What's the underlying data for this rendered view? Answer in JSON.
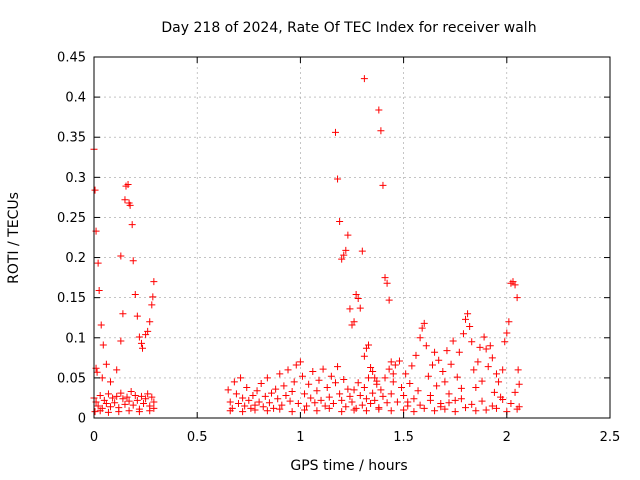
{
  "chart_data": {
    "type": "scatter",
    "title": "Day 218 of 2024, Rate Of TEC Index for receiver walh",
    "xlabel": "GPS time / hours",
    "ylabel": "ROTI / TECUs",
    "xlim": [
      0,
      2.5
    ],
    "ylim": [
      0,
      0.45
    ],
    "xticks": [
      0,
      0.5,
      1,
      1.5,
      2,
      2.5
    ],
    "xtick_labels": [
      "0",
      "0.5",
      "1",
      "1.5",
      "2",
      "2.5"
    ],
    "yticks": [
      0,
      0.05,
      0.1,
      0.15,
      0.2,
      0.25,
      0.3,
      0.35,
      0.4,
      0.45
    ],
    "ytick_labels": [
      "0",
      "0.05",
      "0.1",
      "0.15",
      "0.2",
      "0.25",
      "0.3",
      "0.35",
      "0.4",
      "0.45"
    ],
    "grid": true,
    "marker": "+",
    "color": "#ff0000",
    "series": [
      {
        "name": "ROTI",
        "points": [
          [
            0.0,
            0.335
          ],
          [
            0.005,
            0.284
          ],
          [
            0.01,
            0.233
          ],
          [
            0.02,
            0.193
          ],
          [
            0.025,
            0.159
          ],
          [
            0.035,
            0.116
          ],
          [
            0.045,
            0.091
          ],
          [
            0.06,
            0.067
          ],
          [
            0.01,
            0.062
          ],
          [
            0.015,
            0.057
          ],
          [
            0.04,
            0.05
          ],
          [
            0.08,
            0.045
          ],
          [
            0.11,
            0.06
          ],
          [
            0.13,
            0.096
          ],
          [
            0.14,
            0.13
          ],
          [
            0.13,
            0.202
          ],
          [
            0.15,
            0.272
          ],
          [
            0.155,
            0.289
          ],
          [
            0.165,
            0.291
          ],
          [
            0.17,
            0.268
          ],
          [
            0.175,
            0.265
          ],
          [
            0.185,
            0.241
          ],
          [
            0.19,
            0.196
          ],
          [
            0.2,
            0.154
          ],
          [
            0.21,
            0.127
          ],
          [
            0.22,
            0.101
          ],
          [
            0.23,
            0.093
          ],
          [
            0.235,
            0.087
          ],
          [
            0.25,
            0.104
          ],
          [
            0.26,
            0.108
          ],
          [
            0.27,
            0.12
          ],
          [
            0.28,
            0.141
          ],
          [
            0.285,
            0.151
          ],
          [
            0.29,
            0.17
          ],
          [
            0.0,
            0.025
          ],
          [
            0.01,
            0.02
          ],
          [
            0.02,
            0.015
          ],
          [
            0.03,
            0.028
          ],
          [
            0.04,
            0.012
          ],
          [
            0.05,
            0.022
          ],
          [
            0.06,
            0.018
          ],
          [
            0.07,
            0.03
          ],
          [
            0.08,
            0.014
          ],
          [
            0.09,
            0.025
          ],
          [
            0.1,
            0.019
          ],
          [
            0.11,
            0.027
          ],
          [
            0.12,
            0.013
          ],
          [
            0.13,
            0.031
          ],
          [
            0.14,
            0.024
          ],
          [
            0.15,
            0.017
          ],
          [
            0.16,
            0.026
          ],
          [
            0.17,
            0.021
          ],
          [
            0.18,
            0.033
          ],
          [
            0.19,
            0.016
          ],
          [
            0.2,
            0.028
          ],
          [
            0.21,
            0.022
          ],
          [
            0.22,
            0.011
          ],
          [
            0.23,
            0.027
          ],
          [
            0.24,
            0.018
          ],
          [
            0.25,
            0.024
          ],
          [
            0.26,
            0.03
          ],
          [
            0.27,
            0.015
          ],
          [
            0.28,
            0.026
          ],
          [
            0.29,
            0.02
          ],
          [
            0.005,
            0.008
          ],
          [
            0.03,
            0.009
          ],
          [
            0.07,
            0.007
          ],
          [
            0.12,
            0.008
          ],
          [
            0.17,
            0.009
          ],
          [
            0.22,
            0.008
          ],
          [
            0.27,
            0.009
          ],
          [
            0.29,
            0.012
          ],
          [
            0.65,
            0.035
          ],
          [
            0.66,
            0.02
          ],
          [
            0.67,
            0.012
          ],
          [
            0.68,
            0.045
          ],
          [
            0.69,
            0.03
          ],
          [
            0.7,
            0.018
          ],
          [
            0.71,
            0.05
          ],
          [
            0.72,
            0.025
          ],
          [
            0.73,
            0.015
          ],
          [
            0.74,
            0.038
          ],
          [
            0.75,
            0.022
          ],
          [
            0.76,
            0.012
          ],
          [
            0.77,
            0.028
          ],
          [
            0.78,
            0.016
          ],
          [
            0.79,
            0.034
          ],
          [
            0.8,
            0.02
          ],
          [
            0.81,
            0.043
          ],
          [
            0.82,
            0.014
          ],
          [
            0.83,
            0.027
          ],
          [
            0.84,
            0.05
          ],
          [
            0.85,
            0.019
          ],
          [
            0.86,
            0.031
          ],
          [
            0.87,
            0.012
          ],
          [
            0.88,
            0.036
          ],
          [
            0.89,
            0.024
          ],
          [
            0.9,
            0.055
          ],
          [
            0.91,
            0.016
          ],
          [
            0.92,
            0.04
          ],
          [
            0.93,
            0.028
          ],
          [
            0.94,
            0.06
          ],
          [
            0.95,
            0.021
          ],
          [
            0.96,
            0.033
          ],
          [
            0.97,
            0.045
          ],
          [
            0.98,
            0.066
          ],
          [
            0.99,
            0.018
          ],
          [
            1.0,
            0.07
          ],
          [
            1.01,
            0.052
          ],
          [
            1.02,
            0.03
          ],
          [
            1.03,
            0.015
          ],
          [
            1.04,
            0.042
          ],
          [
            1.05,
            0.025
          ],
          [
            1.06,
            0.058
          ],
          [
            1.07,
            0.019
          ],
          [
            1.08,
            0.034
          ],
          [
            1.09,
            0.047
          ],
          [
            1.1,
            0.022
          ],
          [
            1.11,
            0.061
          ],
          [
            1.12,
            0.015
          ],
          [
            1.13,
            0.038
          ],
          [
            1.14,
            0.026
          ],
          [
            1.15,
            0.052
          ],
          [
            1.16,
            0.018
          ],
          [
            1.17,
            0.044
          ],
          [
            1.18,
            0.064
          ],
          [
            1.19,
            0.03
          ],
          [
            1.2,
            0.022
          ],
          [
            1.21,
            0.048
          ],
          [
            1.22,
            0.014
          ],
          [
            1.23,
            0.036
          ],
          [
            1.24,
            0.027
          ],
          [
            1.17,
            0.356
          ],
          [
            1.18,
            0.298
          ],
          [
            1.19,
            0.245
          ],
          [
            1.2,
            0.198
          ],
          [
            1.21,
            0.203
          ],
          [
            1.22,
            0.209
          ],
          [
            1.23,
            0.228
          ],
          [
            1.24,
            0.136
          ],
          [
            1.25,
            0.116
          ],
          [
            1.26,
            0.12
          ],
          [
            1.27,
            0.154
          ],
          [
            1.28,
            0.149
          ],
          [
            1.29,
            0.137
          ],
          [
            1.3,
            0.208
          ],
          [
            1.31,
            0.077
          ],
          [
            1.32,
            0.087
          ],
          [
            1.33,
            0.091
          ],
          [
            1.31,
            0.423
          ],
          [
            1.34,
            0.063
          ],
          [
            1.35,
            0.058
          ],
          [
            1.36,
            0.05
          ],
          [
            1.37,
            0.046
          ],
          [
            1.38,
            0.384
          ],
          [
            1.39,
            0.358
          ],
          [
            1.4,
            0.29
          ],
          [
            1.41,
            0.175
          ],
          [
            1.42,
            0.168
          ],
          [
            1.43,
            0.147
          ],
          [
            1.44,
            0.07
          ],
          [
            1.45,
            0.055
          ],
          [
            1.25,
            0.02
          ],
          [
            1.26,
            0.035
          ],
          [
            1.27,
            0.012
          ],
          [
            1.28,
            0.044
          ],
          [
            1.29,
            0.028
          ],
          [
            1.3,
            0.016
          ],
          [
            1.31,
            0.038
          ],
          [
            1.32,
            0.024
          ],
          [
            1.33,
            0.05
          ],
          [
            1.34,
            0.018
          ],
          [
            1.35,
            0.031
          ],
          [
            1.36,
            0.022
          ],
          [
            1.37,
            0.042
          ],
          [
            1.38,
            0.013
          ],
          [
            1.39,
            0.035
          ],
          [
            1.4,
            0.027
          ],
          [
            1.41,
            0.05
          ],
          [
            1.42,
            0.019
          ],
          [
            1.43,
            0.061
          ],
          [
            1.44,
            0.03
          ],
          [
            1.45,
            0.045
          ],
          [
            1.46,
            0.066
          ],
          [
            1.47,
            0.02
          ],
          [
            1.48,
            0.071
          ],
          [
            1.49,
            0.038
          ],
          [
            1.5,
            0.028
          ],
          [
            1.51,
            0.055
          ],
          [
            1.52,
            0.015
          ],
          [
            1.53,
            0.043
          ],
          [
            1.54,
            0.065
          ],
          [
            1.55,
            0.024
          ],
          [
            1.56,
            0.078
          ],
          [
            1.57,
            0.034
          ],
          [
            1.58,
            0.1
          ],
          [
            1.59,
            0.112
          ],
          [
            1.6,
            0.118
          ],
          [
            1.61,
            0.09
          ],
          [
            1.62,
            0.052
          ],
          [
            1.63,
            0.028
          ],
          [
            1.64,
            0.066
          ],
          [
            1.65,
            0.082
          ],
          [
            1.66,
            0.04
          ],
          [
            1.67,
            0.072
          ],
          [
            1.68,
            0.018
          ],
          [
            1.69,
            0.058
          ],
          [
            1.7,
            0.045
          ],
          [
            1.71,
            0.084
          ],
          [
            1.72,
            0.03
          ],
          [
            1.73,
            0.067
          ],
          [
            1.74,
            0.096
          ],
          [
            1.75,
            0.022
          ],
          [
            1.76,
            0.051
          ],
          [
            1.77,
            0.082
          ],
          [
            1.78,
            0.037
          ],
          [
            1.79,
            0.105
          ],
          [
            1.8,
            0.123
          ],
          [
            1.81,
            0.13
          ],
          [
            1.82,
            0.114
          ],
          [
            1.83,
            0.095
          ],
          [
            1.84,
            0.06
          ],
          [
            1.85,
            0.038
          ],
          [
            1.86,
            0.07
          ],
          [
            1.87,
            0.088
          ],
          [
            1.88,
            0.046
          ],
          [
            1.89,
            0.101
          ],
          [
            1.9,
            0.086
          ],
          [
            1.91,
            0.064
          ],
          [
            1.92,
            0.09
          ],
          [
            1.93,
            0.075
          ],
          [
            1.94,
            0.032
          ],
          [
            1.95,
            0.055
          ],
          [
            1.96,
            0.045
          ],
          [
            1.97,
            0.026
          ],
          [
            1.98,
            0.06
          ],
          [
            1.99,
            0.095
          ],
          [
            2.0,
            0.106
          ],
          [
            2.01,
            0.12
          ],
          [
            2.02,
            0.168
          ],
          [
            2.03,
            0.17
          ],
          [
            2.04,
            0.166
          ],
          [
            2.05,
            0.15
          ],
          [
            2.055,
            0.06
          ],
          [
            2.06,
            0.042
          ],
          [
            2.04,
            0.032
          ],
          [
            1.5,
            0.01
          ],
          [
            1.55,
            0.008
          ],
          [
            1.6,
            0.012
          ],
          [
            1.65,
            0.009
          ],
          [
            1.7,
            0.011
          ],
          [
            1.75,
            0.008
          ],
          [
            1.8,
            0.013
          ],
          [
            1.85,
            0.009
          ],
          [
            1.9,
            0.01
          ],
          [
            1.95,
            0.012
          ],
          [
            2.0,
            0.008
          ],
          [
            2.05,
            0.011
          ],
          [
            1.52,
            0.02
          ],
          [
            1.58,
            0.016
          ],
          [
            1.63,
            0.022
          ],
          [
            1.68,
            0.014
          ],
          [
            1.72,
            0.019
          ],
          [
            1.78,
            0.024
          ],
          [
            1.83,
            0.017
          ],
          [
            1.88,
            0.021
          ],
          [
            1.93,
            0.015
          ],
          [
            1.98,
            0.023
          ],
          [
            2.02,
            0.018
          ],
          [
            2.06,
            0.014
          ],
          [
            0.66,
            0.009
          ],
          [
            0.72,
            0.008
          ],
          [
            0.78,
            0.01
          ],
          [
            0.84,
            0.009
          ],
          [
            0.9,
            0.011
          ],
          [
            0.96,
            0.008
          ],
          [
            1.02,
            0.01
          ],
          [
            1.08,
            0.009
          ],
          [
            1.14,
            0.012
          ],
          [
            1.2,
            0.008
          ],
          [
            1.26,
            0.01
          ],
          [
            1.32,
            0.009
          ],
          [
            1.38,
            0.011
          ],
          [
            1.44,
            0.009
          ]
        ]
      }
    ]
  }
}
